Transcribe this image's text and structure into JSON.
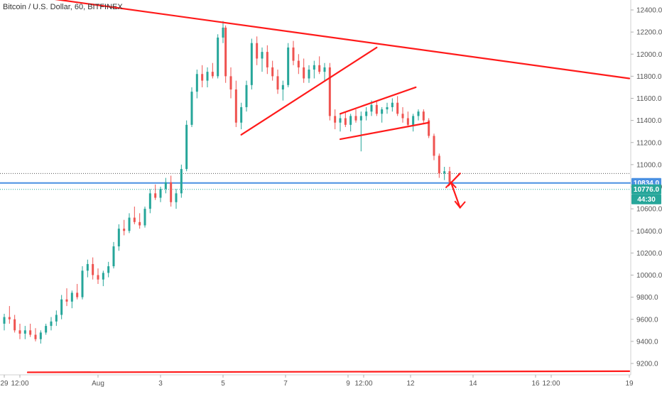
{
  "header": {
    "title": "Bitcoin / U.S. Dollar, 60, BITFINEX"
  },
  "chart_data": {
    "type": "candlestick",
    "symbol": "Bitcoin / U.S. Dollar",
    "interval": "60",
    "exchange": "BITFINEX",
    "title": "Bitcoin / U.S. Dollar, 60, BITFINEX",
    "ylim": [
      9100,
      12500
    ],
    "y_ticks": [
      "12400.0",
      "12200.0",
      "12000.0",
      "11800.0",
      "11600.0",
      "11400.0",
      "11200.0",
      "11000.0",
      "10800.0",
      "10600.0",
      "10400.0",
      "10200.0",
      "10000.0",
      "9800.0",
      "9600.0",
      "9400.0",
      "9200.0"
    ],
    "y_tick_values": [
      12400,
      12200,
      12000,
      11800,
      11600,
      11400,
      11200,
      11000,
      10800,
      10600,
      10400,
      10200,
      10000,
      9800,
      9600,
      9400,
      9200
    ],
    "x_ticks": [
      "29",
      "12:00",
      "Aug",
      "3",
      "5",
      "7",
      "9",
      "12:00",
      "12",
      "14",
      "16",
      "12:00",
      "19"
    ],
    "x_tick_hours": [
      0,
      12,
      72,
      120,
      168,
      216,
      264,
      276,
      312,
      360,
      408,
      420,
      480
    ],
    "x_range_hours": [
      0,
      480
    ],
    "colors": {
      "up": "#26a69a",
      "down": "#ef5350",
      "drawing": "#ff1a1a",
      "price_line": "#4a90e2",
      "price_label": "#4a90e2",
      "secondary_label": "#26a69a"
    },
    "price_label": "10834.0",
    "secondary_price_label": "10776.0",
    "countdown_label": "44:30",
    "horizontal_levels": [
      {
        "value": 10834,
        "style": "solid",
        "color": "#4a90e2"
      },
      {
        "value": 10776,
        "style": "dotted",
        "color": "#26a69a"
      },
      {
        "value": 10920,
        "style": "dotted",
        "color": "#555555"
      }
    ],
    "candles": [
      [
        0,
        9560,
        9650,
        9500,
        9620
      ],
      [
        4,
        9620,
        9720,
        9560,
        9600
      ],
      [
        8,
        9600,
        9640,
        9480,
        9500
      ],
      [
        12,
        9500,
        9560,
        9420,
        9470
      ],
      [
        16,
        9470,
        9540,
        9420,
        9500
      ],
      [
        20,
        9500,
        9560,
        9440,
        9460
      ],
      [
        24,
        9460,
        9520,
        9400,
        9420
      ],
      [
        28,
        9420,
        9500,
        9380,
        9480
      ],
      [
        32,
        9480,
        9560,
        9460,
        9540
      ],
      [
        36,
        9540,
        9620,
        9500,
        9580
      ],
      [
        40,
        9580,
        9680,
        9540,
        9640
      ],
      [
        44,
        9640,
        9820,
        9600,
        9780
      ],
      [
        48,
        9780,
        9880,
        9720,
        9760
      ],
      [
        52,
        9760,
        9860,
        9700,
        9840
      ],
      [
        56,
        9840,
        9920,
        9780,
        9800
      ],
      [
        60,
        9800,
        10080,
        9780,
        10040
      ],
      [
        64,
        10040,
        10140,
        9980,
        10100
      ],
      [
        68,
        10100,
        10160,
        9960,
        10000
      ],
      [
        72,
        10000,
        10060,
        9920,
        9960
      ],
      [
        76,
        9960,
        10040,
        9900,
        10020
      ],
      [
        80,
        10020,
        10120,
        9980,
        10080
      ],
      [
        84,
        10080,
        10300,
        10060,
        10260
      ],
      [
        88,
        10260,
        10460,
        10220,
        10420
      ],
      [
        92,
        10420,
        10500,
        10360,
        10400
      ],
      [
        96,
        10400,
        10560,
        10380,
        10520
      ],
      [
        100,
        10520,
        10620,
        10460,
        10480
      ],
      [
        104,
        10480,
        10560,
        10420,
        10450
      ],
      [
        108,
        10450,
        10620,
        10430,
        10600
      ],
      [
        112,
        10600,
        10780,
        10560,
        10740
      ],
      [
        116,
        10740,
        10820,
        10680,
        10700
      ],
      [
        120,
        10700,
        10800,
        10660,
        10780
      ],
      [
        124,
        10780,
        10880,
        10740,
        10840
      ],
      [
        128,
        10840,
        10900,
        10620,
        10660
      ],
      [
        132,
        10660,
        10780,
        10600,
        10740
      ],
      [
        136,
        10740,
        11000,
        10700,
        10960
      ],
      [
        140,
        10960,
        11400,
        10940,
        11360
      ],
      [
        144,
        11360,
        11700,
        11340,
        11660
      ],
      [
        148,
        11660,
        11860,
        11600,
        11820
      ],
      [
        152,
        11820,
        11900,
        11700,
        11760
      ],
      [
        156,
        11760,
        11880,
        11700,
        11840
      ],
      [
        160,
        11840,
        11920,
        11780,
        11800
      ],
      [
        164,
        11800,
        12180,
        11780,
        12150
      ],
      [
        168,
        12150,
        12300,
        12100,
        12240
      ],
      [
        170,
        12240,
        12260,
        11740,
        11800
      ],
      [
        174,
        11800,
        11880,
        11600,
        11680
      ],
      [
        178,
        11680,
        11760,
        11340,
        11380
      ],
      [
        182,
        11380,
        11560,
        11320,
        11520
      ],
      [
        186,
        11520,
        11760,
        11480,
        11720
      ],
      [
        190,
        11720,
        12140,
        11680,
        12100
      ],
      [
        194,
        12100,
        12160,
        11900,
        11960
      ],
      [
        198,
        11960,
        12060,
        11840,
        12020
      ],
      [
        202,
        12020,
        12080,
        11820,
        11880
      ],
      [
        206,
        11880,
        11940,
        11760,
        11800
      ],
      [
        210,
        11800,
        11860,
        11640,
        11680
      ],
      [
        214,
        11680,
        11760,
        11580,
        11720
      ],
      [
        218,
        11720,
        12100,
        11700,
        12060
      ],
      [
        222,
        12060,
        12120,
        11900,
        11940
      ],
      [
        226,
        11940,
        12000,
        11820,
        11880
      ],
      [
        230,
        11880,
        11960,
        11740,
        11780
      ],
      [
        234,
        11780,
        11900,
        11740,
        11860
      ],
      [
        238,
        11860,
        11940,
        11780,
        11900
      ],
      [
        242,
        11900,
        11980,
        11820,
        11840
      ],
      [
        246,
        11840,
        11920,
        11760,
        11880
      ],
      [
        250,
        11880,
        11920,
        11400,
        11440
      ],
      [
        254,
        11440,
        11500,
        11320,
        11380
      ],
      [
        258,
        11380,
        11460,
        11300,
        11420
      ],
      [
        262,
        11420,
        11480,
        11340,
        11360
      ],
      [
        266,
        11360,
        11460,
        11300,
        11440
      ],
      [
        270,
        11440,
        11500,
        11380,
        11400
      ],
      [
        274,
        11400,
        11480,
        11120,
        11440
      ],
      [
        278,
        11440,
        11520,
        11400,
        11480
      ],
      [
        282,
        11480,
        11580,
        11440,
        11540
      ],
      [
        286,
        11540,
        11580,
        11440,
        11460
      ],
      [
        290,
        11460,
        11520,
        11380,
        11500
      ],
      [
        294,
        11500,
        11560,
        11460,
        11520
      ],
      [
        298,
        11520,
        11600,
        11480,
        11560
      ],
      [
        302,
        11560,
        11620,
        11440,
        11460
      ],
      [
        306,
        11460,
        11520,
        11380,
        11420
      ],
      [
        310,
        11420,
        11480,
        11340,
        11360
      ],
      [
        314,
        11360,
        11460,
        11300,
        11440
      ],
      [
        318,
        11440,
        11500,
        11400,
        11480
      ],
      [
        322,
        11480,
        11500,
        11380,
        11400
      ],
      [
        326,
        11400,
        11420,
        11240,
        11260
      ],
      [
        330,
        11260,
        11280,
        11040,
        11080
      ],
      [
        334,
        11080,
        11100,
        10880,
        10920
      ],
      [
        338,
        10920,
        10980,
        10860,
        10940
      ],
      [
        342,
        10940,
        10980,
        10820,
        10840
      ]
    ],
    "drawings": [
      {
        "name": "upper-resistance-trendline",
        "points": [
          [
            0,
            12560
          ],
          [
            480,
            11780
          ]
        ]
      },
      {
        "name": "ascending-triangle-support",
        "points": [
          [
            182,
            11270
          ],
          [
            286,
            12060
          ]
        ]
      },
      {
        "name": "flag-upper",
        "points": [
          [
            258,
            11460
          ],
          [
            316,
            11700
          ]
        ]
      },
      {
        "name": "flag-lower",
        "points": [
          [
            258,
            11230
          ],
          [
            326,
            11380
          ]
        ]
      },
      {
        "name": "break-mark",
        "points": [
          [
            341,
            10810
          ],
          [
            350,
            10920
          ]
        ]
      },
      {
        "name": "breakdown-arrow-shaft",
        "points": [
          [
            343,
            10840
          ],
          [
            350,
            10610
          ]
        ]
      },
      {
        "name": "bottom-support-line",
        "points": [
          [
            18,
            9120
          ],
          [
            480,
            9130
          ]
        ]
      }
    ],
    "arrowheads": [
      {
        "name": "breakdown-arrow-head",
        "tip": [
          350,
          10610
        ],
        "left": [
          346,
          10670
        ],
        "right": [
          354,
          10665
        ]
      },
      {
        "name": "arrow-reverse-head",
        "tip": [
          343,
          10840
        ],
        "left": [
          339,
          10790
        ],
        "right": [
          347,
          10790
        ]
      }
    ]
  }
}
